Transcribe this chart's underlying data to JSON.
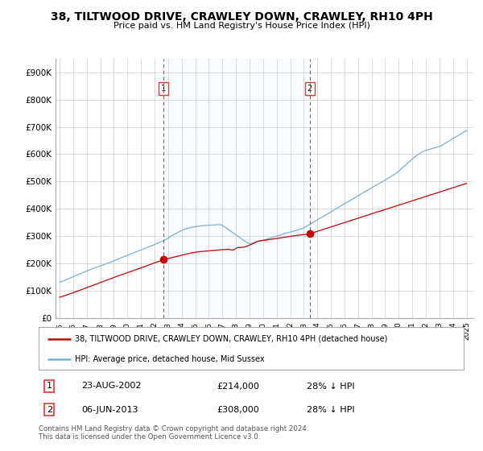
{
  "title": "38, TILTWOOD DRIVE, CRAWLEY DOWN, CRAWLEY, RH10 4PH",
  "subtitle": "Price paid vs. HM Land Registry's House Price Index (HPI)",
  "legend_line1": "38, TILTWOOD DRIVE, CRAWLEY DOWN, CRAWLEY, RH10 4PH (detached house)",
  "legend_line2": "HPI: Average price, detached house, Mid Sussex",
  "table_row1": [
    "1",
    "23-AUG-2002",
    "£214,000",
    "28% ↓ HPI"
  ],
  "table_row2": [
    "2",
    "06-JUN-2013",
    "£308,000",
    "28% ↓ HPI"
  ],
  "footnote": "Contains HM Land Registry data © Crown copyright and database right 2024.\nThis data is licensed under the Open Government Licence v3.0.",
  "ylabel_ticks": [
    0,
    100000,
    200000,
    300000,
    400000,
    500000,
    600000,
    700000,
    800000,
    900000
  ],
  "ylabel_labels": [
    "£0",
    "£100K",
    "£200K",
    "£300K",
    "£400K",
    "£500K",
    "£600K",
    "£700K",
    "£800K",
    "£900K"
  ],
  "x_start_year": 1995,
  "x_end_year": 2025,
  "vline1_year": 2002.65,
  "vline2_year": 2013.44,
  "sale1_year": 2002.65,
  "sale1_price": 214000,
  "sale2_year": 2013.44,
  "sale2_price": 308000,
  "red_line_color": "#cc0000",
  "blue_line_color": "#7ab0d4",
  "shade_color": "#ddeeff",
  "vline_color": "#ee3333",
  "background_color": "#ffffff",
  "grid_color": "#cccccc",
  "title_fontsize": 10.5,
  "subtitle_fontsize": 8.5
}
